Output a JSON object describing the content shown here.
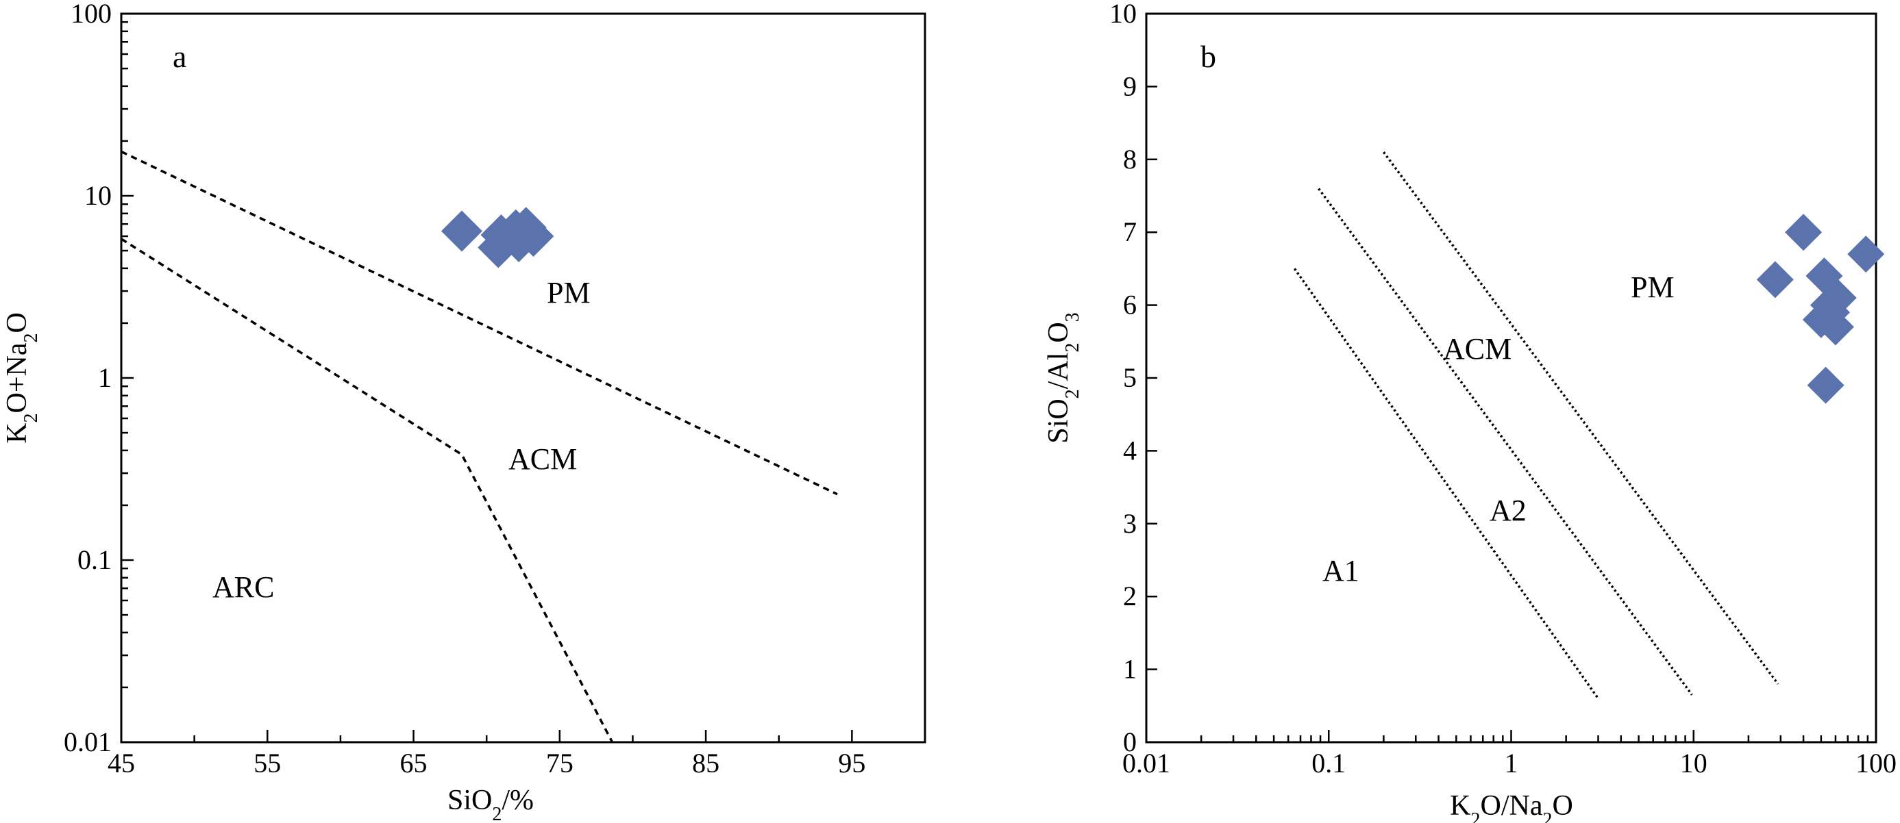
{
  "chart_data": [
    {
      "type": "scatter",
      "panel_label": "a",
      "xlabel": {
        "main": "SiO",
        "sub": "2",
        "tail": "/%"
      },
      "ylabel": {
        "parts": [
          {
            "t": "K"
          },
          {
            "t": "2",
            "sub": true
          },
          {
            "t": "O+Na"
          },
          {
            "t": "2",
            "sub": true
          },
          {
            "t": "O"
          }
        ]
      },
      "xlim": [
        45,
        100
      ],
      "ylim": [
        0.01,
        100
      ],
      "y_scale": "log",
      "x_tick_labels": [
        "45",
        "55",
        "65",
        "75",
        "85",
        "95"
      ],
      "y_tick_labels": [
        "0.01",
        "0.1",
        "1",
        "10",
        "100"
      ],
      "regions": [
        "PM",
        "ACM",
        "ARC"
      ],
      "boundaries": [
        {
          "x": [
            45,
            94
          ],
          "y": [
            17.5,
            0.23
          ]
        },
        {
          "x": [
            45,
            68.3,
            78.6
          ],
          "y": [
            5.8,
            0.38,
            0.01
          ]
        }
      ],
      "points": [
        {
          "x": 68.3,
          "y": 6.4
        },
        {
          "x": 71.0,
          "y": 6.1
        },
        {
          "x": 70.8,
          "y": 5.2
        },
        {
          "x": 72.0,
          "y": 6.5
        },
        {
          "x": 72.4,
          "y": 5.9
        },
        {
          "x": 72.7,
          "y": 6.7
        },
        {
          "x": 73.2,
          "y": 6.0
        },
        {
          "x": 72.2,
          "y": 5.6
        }
      ]
    },
    {
      "type": "scatter",
      "panel_label": "b",
      "xlabel": {
        "parts": [
          {
            "t": "K"
          },
          {
            "t": "2",
            "sub": true
          },
          {
            "t": "O/Na"
          },
          {
            "t": "2",
            "sub": true
          },
          {
            "t": "O"
          }
        ]
      },
      "ylabel": {
        "parts": [
          {
            "t": "SiO"
          },
          {
            "t": "2",
            "sub": true
          },
          {
            "t": "/Al"
          },
          {
            "t": "2",
            "sub": true
          },
          {
            "t": "O"
          },
          {
            "t": "3",
            "sub": true
          }
        ]
      },
      "xlim": [
        0.01,
        100
      ],
      "x_scale": "log",
      "ylim": [
        0,
        10
      ],
      "x_tick_labels": [
        "0.01",
        "0.1",
        "1",
        "10",
        "100"
      ],
      "y_tick_labels": [
        "0",
        "1",
        "2",
        "3",
        "4",
        "5",
        "6",
        "7",
        "8",
        "9",
        "10"
      ],
      "regions": [
        "PM",
        "ACM",
        "A2",
        "A1"
      ],
      "boundaries": [
        {
          "x": [
            0.065,
            3.0
          ],
          "y": [
            6.5,
            0.6
          ]
        },
        {
          "x": [
            0.088,
            9.8
          ],
          "y": [
            7.6,
            0.65
          ]
        },
        {
          "x": [
            0.2,
            29
          ],
          "y": [
            8.1,
            0.8
          ]
        }
      ],
      "points": [
        {
          "x": 40,
          "y": 7.0
        },
        {
          "x": 88,
          "y": 6.7
        },
        {
          "x": 28,
          "y": 6.35
        },
        {
          "x": 52,
          "y": 6.4
        },
        {
          "x": 62,
          "y": 6.1
        },
        {
          "x": 55,
          "y": 6.0
        },
        {
          "x": 57,
          "y": 5.9
        },
        {
          "x": 50,
          "y": 5.8
        },
        {
          "x": 60,
          "y": 5.7
        },
        {
          "x": 53,
          "y": 4.9
        }
      ]
    }
  ]
}
